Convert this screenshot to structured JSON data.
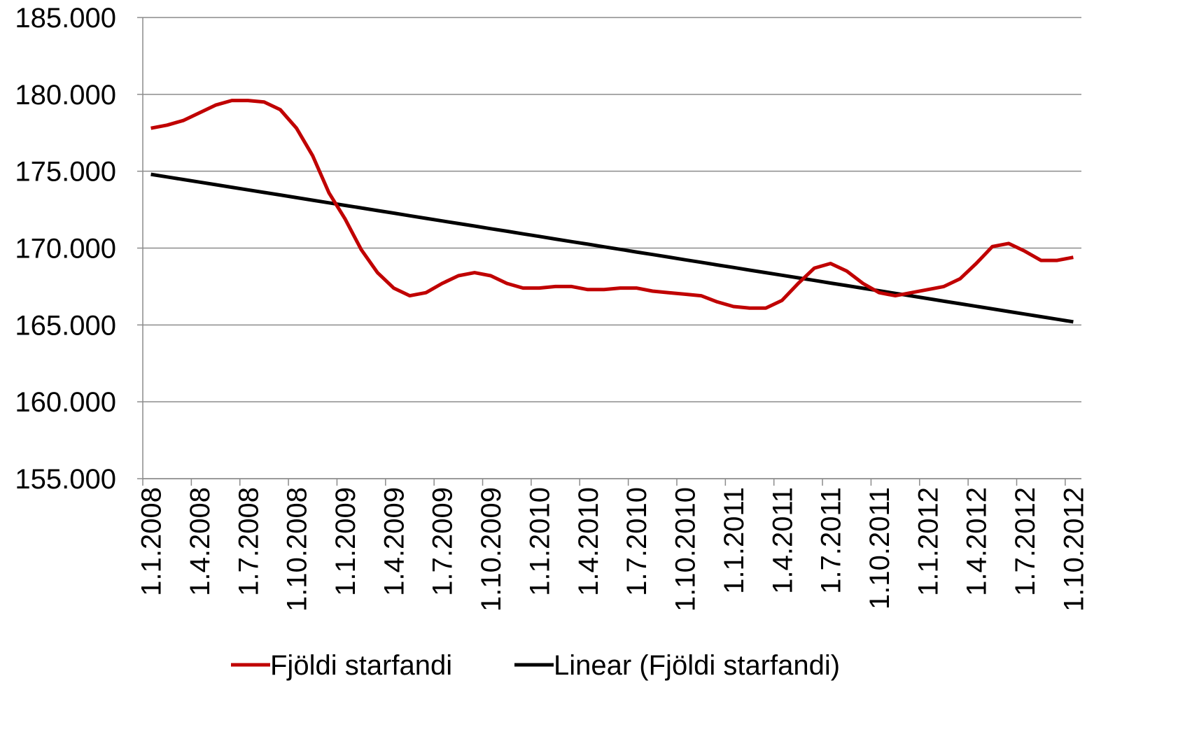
{
  "chart_data": {
    "type": "line",
    "categories": [
      "1.1.2008",
      null,
      null,
      "1.4.2008",
      null,
      null,
      "1.7.2008",
      null,
      null,
      "1.10.2008",
      null,
      null,
      "1.1.2009",
      null,
      null,
      "1.4.2009",
      null,
      null,
      "1.7.2009",
      null,
      null,
      "1.10.2009",
      null,
      null,
      "1.1.2010",
      null,
      null,
      "1.4.2010",
      null,
      null,
      "1.7.2010",
      null,
      null,
      "1.10.2010",
      null,
      null,
      "1.1.2011",
      null,
      null,
      "1.4.2011",
      null,
      null,
      "1.7.2011",
      null,
      null,
      "1.10.2011",
      null,
      null,
      "1.1.2012",
      null,
      null,
      "1.4.2012",
      null,
      null,
      "1.7.2012",
      null,
      null,
      "1.10.2012"
    ],
    "series": [
      {
        "name": "Fjöldi starfandi",
        "color": "#c00000",
        "values": [
          177800,
          178000,
          178300,
          178800,
          179300,
          179600,
          179600,
          179500,
          179000,
          177800,
          176000,
          173600,
          171900,
          169900,
          168400,
          167400,
          166900,
          167100,
          167700,
          168200,
          168400,
          168200,
          167700,
          167400,
          167400,
          167500,
          167500,
          167300,
          167300,
          167400,
          167400,
          167200,
          167100,
          167000,
          166900,
          166500,
          166200,
          166100,
          166100,
          166600,
          167700,
          168700,
          169000,
          168500,
          167700,
          167100,
          166900,
          167100,
          167300,
          167500,
          168000,
          169000,
          170100,
          170300,
          169800,
          169200,
          169200,
          169400
        ]
      },
      {
        "name": "Linear (Fjöldi starfandi)",
        "color": "#000000",
        "values": [
          174800,
          174632,
          174463,
          174295,
          174126,
          173958,
          173789,
          173621,
          173453,
          173284,
          173116,
          172947,
          172779,
          172611,
          172442,
          172274,
          172105,
          171937,
          171768,
          171600,
          171432,
          171263,
          171095,
          170926,
          170758,
          170589,
          170421,
          170253,
          170084,
          169916,
          169747,
          169579,
          169411,
          169242,
          169074,
          168905,
          168737,
          168568,
          168400,
          168232,
          168063,
          167895,
          167726,
          167558,
          167389,
          167221,
          167053,
          166884,
          166716,
          166547,
          166379,
          166211,
          166042,
          165874,
          165705,
          165537,
          165368,
          165200
        ]
      }
    ],
    "ylim": [
      155000,
      185000
    ],
    "yticks": [
      {
        "value": 155000,
        "label": "155.000"
      },
      {
        "value": 160000,
        "label": "160.000"
      },
      {
        "value": 165000,
        "label": "165.000"
      },
      {
        "value": 170000,
        "label": "170.000"
      },
      {
        "value": 175000,
        "label": "175.000"
      },
      {
        "value": 180000,
        "label": "180.000"
      },
      {
        "value": 185000,
        "label": "185.000"
      }
    ],
    "grid": true,
    "legend": "bottom"
  }
}
